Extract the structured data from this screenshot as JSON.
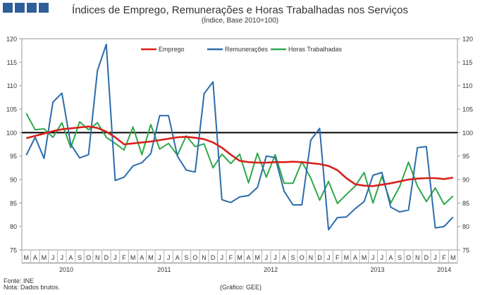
{
  "title": "Índices de Emprego,  Remunerações e Horas Trabalhadas nos Serviços",
  "subtitle": "(Índice, Base 2010=100)",
  "source": "Fonte:  INE",
  "note": "Nota: Dados brutos.",
  "credit": "(Gráfico:  GEE)",
  "colors": {
    "emprego": "#d9211b",
    "remuneracoes": "#2b6cab",
    "horas": "#2ea84a",
    "reference": "#000000",
    "logo": "#2f5f98"
  },
  "chart_data": {
    "type": "line",
    "ylim": [
      75,
      120
    ],
    "yticks": [
      75,
      80,
      85,
      90,
      95,
      100,
      105,
      110,
      115,
      120
    ],
    "reference_line": 100,
    "months": [
      "M",
      "A",
      "M",
      "J",
      "J",
      "A",
      "S",
      "O",
      "N",
      "D",
      "J",
      "F",
      "M",
      "A",
      "M",
      "J",
      "J",
      "A",
      "S",
      "O",
      "N",
      "D",
      "J",
      "F",
      "M",
      "A",
      "M",
      "J",
      "J",
      "A",
      "S",
      "O",
      "N",
      "D",
      "J",
      "F",
      "M",
      "A",
      "M",
      "J",
      "J",
      "A",
      "S",
      "O",
      "N",
      "D",
      "J",
      "F",
      "M"
    ],
    "years": [
      {
        "label": "2010",
        "start": 0,
        "end": 9
      },
      {
        "label": "2011",
        "start": 10,
        "end": 21
      },
      {
        "label": "2012",
        "start": 22,
        "end": 33
      },
      {
        "label": "2013",
        "start": 34,
        "end": 45
      },
      {
        "label": "2014",
        "start": 46,
        "end": 48
      }
    ],
    "series": [
      {
        "name": "Emprego",
        "key": "emprego",
        "values": [
          98.8,
          99.3,
          99.8,
          100.3,
          100.7,
          100.9,
          101.1,
          101.3,
          101.0,
          100.2,
          99.0,
          97.5,
          97.7,
          97.9,
          98.1,
          98.4,
          98.7,
          99.0,
          99.1,
          98.9,
          98.6,
          97.9,
          96.8,
          95.3,
          94.0,
          93.7,
          93.6,
          93.6,
          93.7,
          93.7,
          93.8,
          93.7,
          93.5,
          93.3,
          92.9,
          92.0,
          90.3,
          89.0,
          88.7,
          88.6,
          88.9,
          89.2,
          89.6,
          90.0,
          90.2,
          90.3,
          90.3,
          90.1,
          90.4
        ]
      },
      {
        "name": "Remunerações",
        "key": "remuneracoes",
        "values": [
          95.2,
          99.0,
          94.5,
          106.5,
          108.4,
          97.5,
          94.6,
          95.3,
          113.2,
          118.8,
          89.8,
          90.5,
          92.9,
          93.6,
          95.5,
          103.6,
          103.6,
          95.0,
          92.0,
          91.6,
          108.3,
          110.8,
          85.7,
          85.1,
          86.3,
          86.6,
          88.3,
          95.0,
          94.7,
          87.5,
          84.6,
          84.6,
          98.4,
          100.9,
          79.3,
          81.9,
          82.0,
          83.8,
          85.3,
          90.9,
          91.5,
          84.1,
          83.1,
          83.5,
          96.8,
          97.0,
          79.7,
          80.0,
          82.0
        ]
      },
      {
        "name": "Horas Trabalhadas",
        "key": "horas",
        "values": [
          104.1,
          100.6,
          100.8,
          99.0,
          102.1,
          96.8,
          102.3,
          100.6,
          102.1,
          99.0,
          97.7,
          96.3,
          101.2,
          95.3,
          101.7,
          96.5,
          97.7,
          95.2,
          99.3,
          97.0,
          97.6,
          92.5,
          95.4,
          93.4,
          95.4,
          89.3,
          95.6,
          90.5,
          95.3,
          89.2,
          89.2,
          93.8,
          90.3,
          85.6,
          89.6,
          84.9,
          86.8,
          88.6,
          91.5,
          85.0,
          90.7,
          85.0,
          88.5,
          93.7,
          88.6,
          85.3,
          88.2,
          84.7,
          86.5
        ]
      }
    ]
  }
}
